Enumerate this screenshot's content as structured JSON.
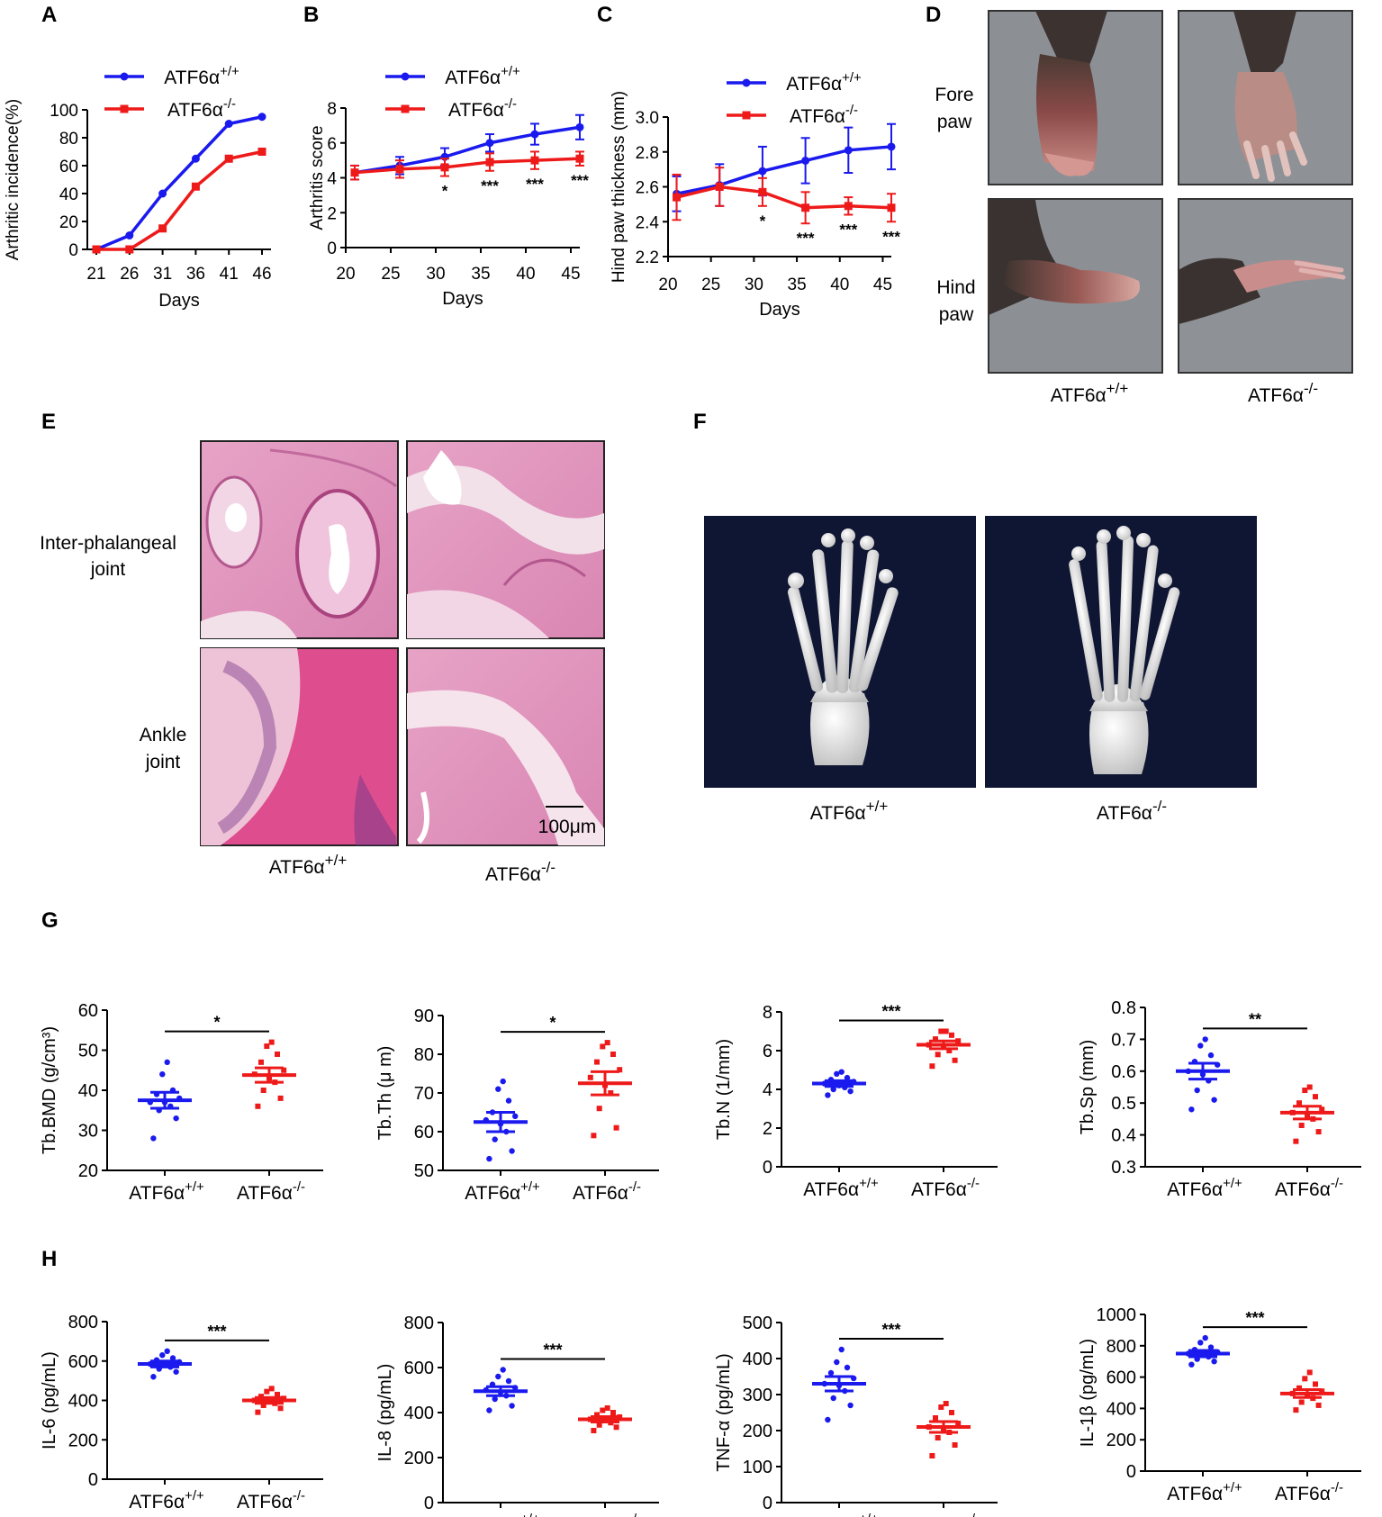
{
  "colors": {
    "wt": "#1a1aee",
    "ko": "#ee1a1a",
    "photo_bg": "#8e9297",
    "ct_bg": "#0f1633",
    "he_pink": "#e9a7c7"
  },
  "genotypes": {
    "wt_base": "ATF6α",
    "wt_sup": "+/+",
    "ko_base": "ATF6α",
    "ko_sup": "-/-"
  },
  "panels": {
    "A": {
      "letter": "A"
    },
    "B": {
      "letter": "B"
    },
    "C": {
      "letter": "C"
    },
    "D": {
      "letter": "D"
    },
    "E": {
      "letter": "E"
    },
    "F": {
      "letter": "F"
    },
    "G": {
      "letter": "G"
    },
    "H": {
      "letter": "H"
    }
  },
  "D_labels": {
    "row1_a": "Fore",
    "row1_b": "paw",
    "row2_a": "Hind",
    "row2_b": "paw"
  },
  "E_labels": {
    "row1_a": "Inter-phalangeal",
    "row1_b": "joint",
    "row2_a": "Ankle",
    "row2_b": "joint",
    "scale": "100μm"
  },
  "chart_data": [
    {
      "id": "A",
      "type": "line",
      "xlabel": "Days",
      "ylabel": "Arthritic incidence(%)",
      "x": [
        21,
        26,
        31,
        36,
        41,
        46
      ],
      "ylim": [
        0,
        100
      ],
      "yticks": [
        0,
        20,
        40,
        60,
        80,
        100
      ],
      "series": [
        {
          "name": "ATF6α+/+",
          "values": [
            0,
            10,
            40,
            65,
            90,
            95
          ]
        },
        {
          "name": "ATF6α-/-",
          "values": [
            0,
            0,
            15,
            45,
            65,
            70
          ]
        }
      ]
    },
    {
      "id": "B",
      "type": "line",
      "xlabel": "Days",
      "ylabel": "Arthritis score",
      "x": [
        21,
        26,
        31,
        36,
        41,
        46
      ],
      "xticks": [
        20,
        25,
        30,
        35,
        40,
        45
      ],
      "xlim": [
        20,
        46
      ],
      "ylim": [
        0,
        8
      ],
      "yticks": [
        0,
        2,
        4,
        6,
        8
      ],
      "series": [
        {
          "name": "ATF6α+/+",
          "values": [
            4.3,
            4.7,
            5.2,
            6.0,
            6.5,
            6.9
          ],
          "err": [
            0.4,
            0.5,
            0.5,
            0.5,
            0.6,
            0.7
          ]
        },
        {
          "name": "ATF6α-/-",
          "values": [
            4.3,
            4.5,
            4.6,
            4.9,
            5.0,
            5.1
          ],
          "err": [
            0.4,
            0.5,
            0.5,
            0.5,
            0.5,
            0.4
          ]
        }
      ],
      "annotations": [
        "",
        "",
        "*",
        "***",
        "***",
        "***"
      ]
    },
    {
      "id": "C",
      "type": "line",
      "xlabel": "Days",
      "ylabel": "Hind paw thickness (mm)",
      "x": [
        21,
        26,
        31,
        36,
        41,
        46
      ],
      "xticks": [
        20,
        25,
        30,
        35,
        40,
        45
      ],
      "xlim": [
        20,
        46
      ],
      "ylim": [
        2.2,
        3.0
      ],
      "yticks": [
        2.2,
        2.4,
        2.6,
        2.8,
        3.0
      ],
      "series": [
        {
          "name": "ATF6α+/+",
          "values": [
            2.56,
            2.61,
            2.69,
            2.75,
            2.81,
            2.83
          ],
          "err": [
            0.1,
            0.12,
            0.14,
            0.13,
            0.13,
            0.13
          ]
        },
        {
          "name": "ATF6α-/-",
          "values": [
            2.54,
            2.6,
            2.57,
            2.48,
            2.49,
            2.48
          ],
          "err": [
            0.13,
            0.11,
            0.08,
            0.09,
            0.05,
            0.08
          ]
        }
      ],
      "annotations": [
        "",
        "",
        "*",
        "***",
        "***",
        "***"
      ]
    },
    {
      "id": "G1",
      "type": "scatter",
      "ylabel": "Tb.BMD (g/cm³)",
      "ylim": [
        20,
        60
      ],
      "yticks": [
        20,
        30,
        40,
        50,
        60
      ],
      "groups": [
        {
          "name": "ATF6α+/+",
          "mean": 37.5,
          "sem": 2.0,
          "points": [
            28,
            33,
            35,
            36,
            37,
            37,
            38,
            39,
            40,
            44,
            47
          ]
        },
        {
          "name": "ATF6α-/-",
          "mean": 43.8,
          "sem": 1.8,
          "points": [
            36,
            38,
            40,
            42,
            43,
            44,
            45,
            47,
            49,
            51,
            52
          ]
        }
      ],
      "sig": "*"
    },
    {
      "id": "G2",
      "type": "scatter",
      "ylabel": "Tb.Th (μ m)",
      "ylim": [
        50,
        90
      ],
      "yticks": [
        50,
        60,
        70,
        80,
        90
      ],
      "groups": [
        {
          "name": "ATF6α+/+",
          "mean": 62.5,
          "sem": 2.5,
          "points": [
            53,
            55,
            58,
            60,
            62,
            63,
            64,
            65,
            68,
            71,
            73
          ]
        },
        {
          "name": "ATF6α-/-",
          "mean": 72.5,
          "sem": 3.0,
          "points": [
            59,
            61,
            66,
            70,
            72,
            74,
            76,
            78,
            80,
            82,
            83
          ]
        }
      ],
      "sig": "*"
    },
    {
      "id": "G3",
      "type": "scatter",
      "ylabel": "Tb.N (1/mm)",
      "ylim": [
        0,
        8
      ],
      "yticks": [
        0,
        2,
        4,
        6,
        8
      ],
      "groups": [
        {
          "name": "ATF6α+/+",
          "mean": 4.3,
          "sem": 0.15,
          "points": [
            3.7,
            3.9,
            4.0,
            4.1,
            4.2,
            4.3,
            4.4,
            4.5,
            4.6,
            4.8,
            4.9
          ]
        },
        {
          "name": "ATF6α-/-",
          "mean": 6.3,
          "sem": 0.2,
          "points": [
            5.2,
            5.5,
            5.8,
            6.0,
            6.2,
            6.3,
            6.5,
            6.6,
            6.8,
            7.0,
            7.0
          ]
        }
      ],
      "sig": "***"
    },
    {
      "id": "G4",
      "type": "scatter",
      "ylabel": "Tb.Sp (mm)",
      "ylim": [
        0.3,
        0.8
      ],
      "yticks": [
        0.3,
        0.4,
        0.5,
        0.6,
        0.7,
        0.8
      ],
      "groups": [
        {
          "name": "ATF6α+/+",
          "mean": 0.6,
          "sem": 0.025,
          "points": [
            0.48,
            0.51,
            0.54,
            0.57,
            0.59,
            0.6,
            0.62,
            0.63,
            0.65,
            0.68,
            0.7
          ]
        },
        {
          "name": "ATF6α-/-",
          "mean": 0.47,
          "sem": 0.02,
          "points": [
            0.38,
            0.41,
            0.43,
            0.45,
            0.46,
            0.47,
            0.48,
            0.5,
            0.52,
            0.54,
            0.55
          ]
        }
      ],
      "sig": "**"
    },
    {
      "id": "H1",
      "type": "scatter",
      "ylabel": "IL-6 (pg/mL)",
      "ylim": [
        0,
        800
      ],
      "yticks": [
        0,
        200,
        400,
        600,
        800
      ],
      "groups": [
        {
          "name": "ATF6α+/+",
          "mean": 585,
          "sem": 15,
          "points": [
            520,
            545,
            560,
            570,
            580,
            585,
            595,
            605,
            615,
            630,
            650
          ]
        },
        {
          "name": "ATF6α-/-",
          "mean": 400,
          "sem": 15,
          "points": [
            340,
            360,
            375,
            385,
            395,
            400,
            410,
            420,
            430,
            445,
            460
          ]
        }
      ],
      "sig": "***"
    },
    {
      "id": "H2",
      "type": "scatter",
      "ylabel": "IL-8 (pg/mL)",
      "ylim": [
        0,
        800
      ],
      "yticks": [
        0,
        200,
        400,
        600,
        800
      ],
      "groups": [
        {
          "name": "ATF6α+/+",
          "mean": 495,
          "sem": 20,
          "points": [
            410,
            430,
            460,
            475,
            490,
            500,
            510,
            525,
            540,
            560,
            590
          ]
        },
        {
          "name": "ATF6α-/-",
          "mean": 370,
          "sem": 12,
          "points": [
            320,
            335,
            345,
            355,
            365,
            370,
            380,
            390,
            400,
            410,
            420
          ]
        }
      ],
      "sig": "***"
    },
    {
      "id": "H3",
      "type": "scatter",
      "ylabel": "TNF-α (pg/mL)",
      "ylim": [
        0,
        500
      ],
      "yticks": [
        0,
        100,
        200,
        300,
        400,
        500
      ],
      "groups": [
        {
          "name": "ATF6α+/+",
          "mean": 330,
          "sem": 20,
          "points": [
            230,
            270,
            290,
            310,
            325,
            330,
            345,
            360,
            375,
            390,
            425
          ]
        },
        {
          "name": "ATF6α-/-",
          "mean": 210,
          "sem": 15,
          "points": [
            130,
            160,
            180,
            195,
            205,
            210,
            220,
            235,
            250,
            265,
            275
          ]
        }
      ],
      "sig": "***"
    },
    {
      "id": "H4",
      "type": "scatter",
      "ylabel": "IL-1β (pg/mL)",
      "ylim": [
        0,
        1000
      ],
      "yticks": [
        0,
        200,
        400,
        600,
        800,
        1000
      ],
      "groups": [
        {
          "name": "ATF6α+/+",
          "mean": 750,
          "sem": 20,
          "points": [
            680,
            700,
            715,
            730,
            740,
            750,
            760,
            775,
            790,
            820,
            850
          ]
        },
        {
          "name": "ATF6α-/-",
          "mean": 495,
          "sem": 25,
          "points": [
            390,
            420,
            440,
            465,
            485,
            495,
            510,
            530,
            555,
            590,
            630
          ]
        }
      ],
      "sig": "***"
    }
  ]
}
